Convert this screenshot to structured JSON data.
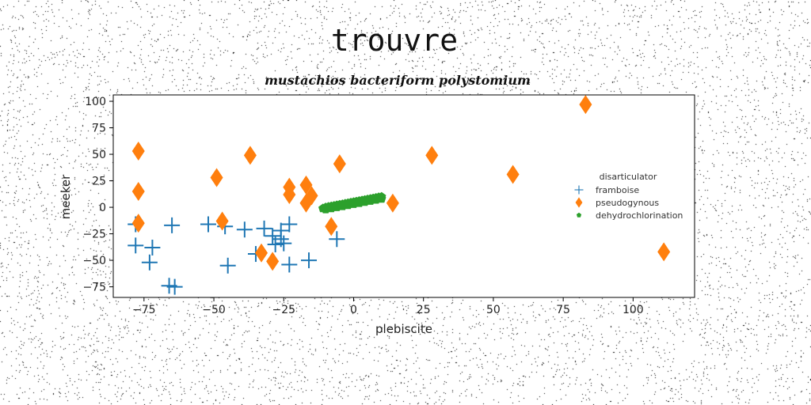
{
  "chart_data": {
    "type": "scatter",
    "title": "trouvre",
    "subtitle": "mustachios bacteriform polystomium",
    "xlabel": "plebiscite",
    "ylabel": "meeker",
    "xlim": [
      -86,
      122
    ],
    "ylim": [
      -85,
      106
    ],
    "xticks": [
      -75,
      -50,
      -25,
      0,
      25,
      50,
      75,
      100
    ],
    "yticks": [
      -75,
      -50,
      -25,
      0,
      25,
      50,
      75,
      100
    ],
    "grid": false,
    "legend": {
      "title": "disarticulator",
      "placement": "center-right"
    },
    "series": [
      {
        "name": "framboise",
        "marker": "plus",
        "color": "#1f77b4",
        "points": [
          [
            -78,
            -16
          ],
          [
            -78,
            -36
          ],
          [
            -72,
            -38
          ],
          [
            -73,
            -52
          ],
          [
            -65,
            -17
          ],
          [
            -66,
            -74
          ],
          [
            -64,
            -75
          ],
          [
            -52,
            -16
          ],
          [
            -46,
            -18
          ],
          [
            -45,
            -55
          ],
          [
            -39,
            -21
          ],
          [
            -35,
            -44
          ],
          [
            -32,
            -20
          ],
          [
            -29,
            -27
          ],
          [
            -28,
            -35
          ],
          [
            -26,
            -22
          ],
          [
            -26,
            -30
          ],
          [
            -25,
            -34
          ],
          [
            -23,
            -16
          ],
          [
            -23,
            -54
          ],
          [
            -16,
            -50
          ],
          [
            -6,
            -30
          ]
        ]
      },
      {
        "name": "pseudogynous",
        "marker": "diamond",
        "color": "#ff7f0e",
        "points": [
          [
            -77,
            53
          ],
          [
            -77,
            15
          ],
          [
            -77,
            -15
          ],
          [
            -49,
            28
          ],
          [
            -47,
            -13
          ],
          [
            -37,
            49
          ],
          [
            -33,
            -43
          ],
          [
            -29,
            -51
          ],
          [
            -23,
            19
          ],
          [
            -23,
            12
          ],
          [
            -17,
            21
          ],
          [
            -17,
            4
          ],
          [
            -15,
            11
          ],
          [
            -8,
            -18
          ],
          [
            -5,
            41
          ],
          [
            14,
            4
          ],
          [
            28,
            49
          ],
          [
            57,
            31
          ],
          [
            83,
            97
          ],
          [
            111,
            -42
          ]
        ]
      },
      {
        "name": "dehydrochlorination",
        "marker": "pentagon",
        "color": "#2ca02c",
        "points": [
          [
            -11,
            -1
          ],
          [
            -10,
            0
          ],
          [
            -9,
            0.5
          ],
          [
            -8,
            1
          ],
          [
            -7,
            1.5
          ],
          [
            -6,
            2
          ],
          [
            -5,
            2.5
          ],
          [
            -4,
            3
          ],
          [
            -3,
            3.5
          ],
          [
            -2,
            4
          ],
          [
            -1,
            4.5
          ],
          [
            0,
            5
          ],
          [
            1,
            5.5
          ],
          [
            2,
            6
          ],
          [
            3,
            6.5
          ],
          [
            4,
            7
          ],
          [
            5,
            7.5
          ],
          [
            6,
            8
          ],
          [
            7,
            8.5
          ],
          [
            8,
            9
          ],
          [
            9,
            9.5
          ],
          [
            10,
            10
          ],
          [
            -10,
            -2
          ],
          [
            -8,
            -1
          ],
          [
            -6,
            0
          ],
          [
            -4,
            1
          ],
          [
            -2,
            2
          ],
          [
            0,
            3
          ],
          [
            2,
            4
          ],
          [
            4,
            5
          ],
          [
            6,
            6
          ],
          [
            8,
            7
          ],
          [
            10,
            8
          ]
        ]
      }
    ]
  }
}
